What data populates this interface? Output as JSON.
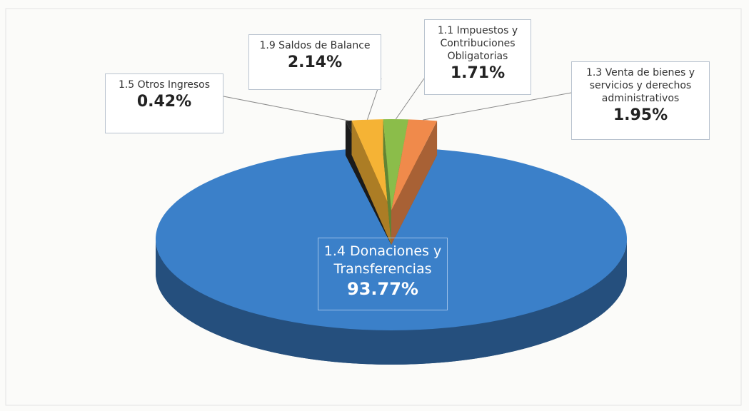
{
  "chart_data": {
    "type": "pie",
    "categories": [
      "1.5 Otros Ingresos",
      "1.9 Saldos de Balance",
      "1.1 Impuestos y Contribuciones Obligatorias",
      "1.3 Venta de bienes y servicios y derechos administrativos",
      "1.4 Donaciones y Transferencias"
    ],
    "values": [
      0.42,
      2.14,
      1.71,
      1.95,
      93.77
    ],
    "value_labels": [
      "0.42%",
      "2.14%",
      "1.71%",
      "1.95%",
      "93.77%"
    ],
    "colors": [
      "#262626",
      "#f5b335",
      "#8bbd4a",
      "#f08a4b",
      "#3b80c9"
    ]
  }
}
